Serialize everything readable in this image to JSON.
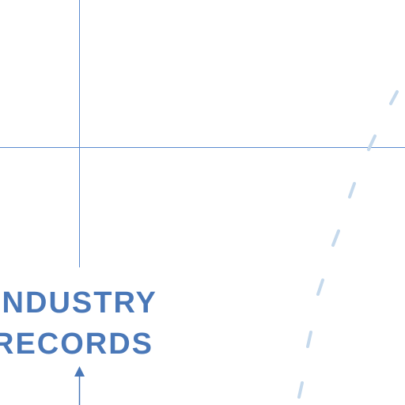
{
  "annotation": {
    "lines": [
      "INDUSTRY",
      "RECORDS"
    ]
  },
  "colors": {
    "axis": "#5b8bd0",
    "text": "#4a78b8",
    "dashed_line": "#c5d9ec",
    "background": "#ffffff"
  }
}
